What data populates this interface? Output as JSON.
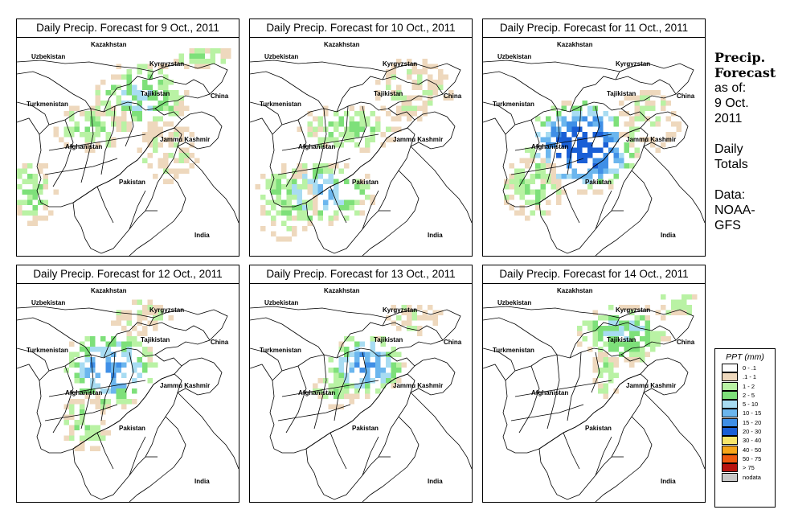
{
  "figure": {
    "side": {
      "heading1": "Precip.",
      "heading2": "Forecast",
      "asof": "as of:",
      "date1": "9 Oct.",
      "date2": "2011",
      "daily": "Daily",
      "totals": "Totals",
      "data": "Data:",
      "src1": "NOAA-",
      "src2": "GFS"
    },
    "place_labels": {
      "kazakhstan": "Kazakhstan",
      "uzbekistan": "Uzbekistan",
      "kyrgyzstan": "Kyrgyzstan",
      "tajikistan": "Tajikistan",
      "turkmenistan": "Turkmenistan",
      "china": "China",
      "afghanistan": "Afghanistan",
      "jammu": "Jammu Kashmir",
      "pakistan": "Pakistan",
      "india": "India"
    },
    "panels": [
      {
        "title": "Daily Precip. Forecast for  9 Oct., 2011"
      },
      {
        "title": "Daily Precip. Forecast for  10 Oct., 2011"
      },
      {
        "title": "Daily Precip. Forecast for  11 Oct., 2011"
      },
      {
        "title": "Daily Precip. Forecast for  12 Oct., 2011"
      },
      {
        "title": "Daily Precip. Forecast for  13 Oct., 2011"
      },
      {
        "title": "Daily Precip. Forecast for  14 Oct., 2011"
      }
    ],
    "legend": {
      "title": "PPT (mm)",
      "entries": [
        {
          "label": "0 - .1",
          "color": "#ffffff"
        },
        {
          "label": ".1 - 1",
          "color": "#eed8bd"
        },
        {
          "label": "1 - 2",
          "color": "#b9f2a4"
        },
        {
          "label": "2 - 5",
          "color": "#7ee07a"
        },
        {
          "label": "5 - 10",
          "color": "#a8dcf2"
        },
        {
          "label": "10 - 15",
          "color": "#6bb6ee"
        },
        {
          "label": "15 - 20",
          "color": "#3f8fe6"
        },
        {
          "label": "20 - 30",
          "color": "#1a5fd6"
        },
        {
          "label": "30 - 40",
          "color": "#f7e56b"
        },
        {
          "label": "40 - 50",
          "color": "#f7a61a"
        },
        {
          "label": "50 - 75",
          "color": "#ef5a0f"
        },
        {
          "label": "> 75",
          "color": "#b8130f"
        },
        {
          "label": "nodata",
          "color": "#c8c8c8"
        }
      ]
    }
  }
}
